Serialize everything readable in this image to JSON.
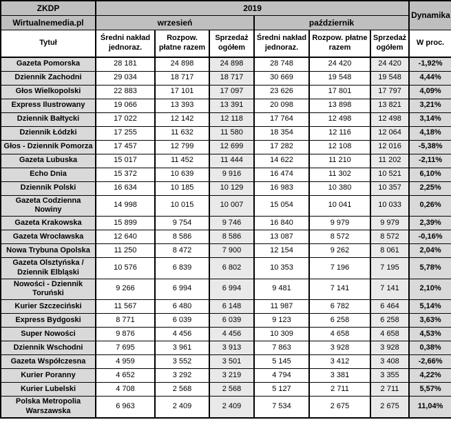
{
  "colors": {
    "header-gray": "#BFBFBF",
    "label-gray": "#D9D9D9",
    "shaded-col": "#E9E9E9",
    "pct-gray": "#D9D9D9",
    "border-black": "#000000",
    "bg-white": "#FFFFFF"
  },
  "chart_data": {
    "type": "table",
    "source_label": "ZKDP",
    "publisher_label": "Wirtualnemedia.pl",
    "year": "2019",
    "dynamics_label": "Dynamika",
    "title_label": "Tytuł",
    "percent_label": "W proc.",
    "months": [
      "wrzesień",
      "październik"
    ],
    "measure_headers": [
      "Średni nakład jednoraz.",
      "Rozpow. płatne razem",
      "Sprzedaż ogółem"
    ],
    "rows": [
      {
        "title": "Gazeta Pomorska",
        "values": [
          "28 181",
          "24 898",
          "24 898",
          "28 748",
          "24 420",
          "24 420"
        ],
        "dynamics": "-1,92%"
      },
      {
        "title": "Dziennik Zachodni",
        "values": [
          "29 034",
          "18 717",
          "18 717",
          "30 669",
          "19 548",
          "19 548"
        ],
        "dynamics": "4,44%"
      },
      {
        "title": "Głos Wielkopolski",
        "values": [
          "22 883",
          "17 101",
          "17 097",
          "23 626",
          "17 801",
          "17 797"
        ],
        "dynamics": "4,09%"
      },
      {
        "title": "Express Ilustrowany",
        "values": [
          "19 066",
          "13 393",
          "13 391",
          "20 098",
          "13 898",
          "13 821"
        ],
        "dynamics": "3,21%"
      },
      {
        "title": "Dziennik Bałtycki",
        "values": [
          "17 022",
          "12 142",
          "12 118",
          "17 764",
          "12 498",
          "12 498"
        ],
        "dynamics": "3,14%"
      },
      {
        "title": "Dziennik Łódzki",
        "values": [
          "17 255",
          "11 632",
          "11 580",
          "18 354",
          "12 116",
          "12 064"
        ],
        "dynamics": "4,18%"
      },
      {
        "title": "Głos - Dziennik Pomorza",
        "values": [
          "17 457",
          "12 799",
          "12 699",
          "17 282",
          "12 108",
          "12 016"
        ],
        "dynamics": "-5,38%"
      },
      {
        "title": "Gazeta Lubuska",
        "values": [
          "15 017",
          "11 452",
          "11 444",
          "14 622",
          "11 210",
          "11 202"
        ],
        "dynamics": "-2,11%"
      },
      {
        "title": "Echo Dnia",
        "values": [
          "15 372",
          "10 639",
          "9 916",
          "16 474",
          "11 302",
          "10 521"
        ],
        "dynamics": "6,10%"
      },
      {
        "title": "Dziennik Polski",
        "values": [
          "16 634",
          "10 185",
          "10 129",
          "16 983",
          "10 380",
          "10 357"
        ],
        "dynamics": "2,25%"
      },
      {
        "title": "Gazeta Codzienna Nowiny",
        "values": [
          "14 998",
          "10 015",
          "10 007",
          "15 054",
          "10 041",
          "10 033"
        ],
        "dynamics": "0,26%"
      },
      {
        "title": "Gazeta Krakowska",
        "values": [
          "15 899",
          "9 754",
          "9 746",
          "16 840",
          "9 979",
          "9 979"
        ],
        "dynamics": "2,39%"
      },
      {
        "title": "Gazeta Wrocławska",
        "values": [
          "12 640",
          "8 586",
          "8 586",
          "13 087",
          "8 572",
          "8 572"
        ],
        "dynamics": "-0,16%"
      },
      {
        "title": "Nowa Trybuna Opolska",
        "values": [
          "11 250",
          "8 472",
          "7 900",
          "12 154",
          "9 262",
          "8 061"
        ],
        "dynamics": "2,04%"
      },
      {
        "title": "Gazeta Olsztyńska / Dziennik Elbląski",
        "values": [
          "10 576",
          "6 839",
          "6 802",
          "10 353",
          "7 196",
          "7 195"
        ],
        "dynamics": "5,78%"
      },
      {
        "title": "Nowości - Dziennik Toruński",
        "values": [
          "9 266",
          "6 994",
          "6 994",
          "9 481",
          "7 141",
          "7 141"
        ],
        "dynamics": "2,10%"
      },
      {
        "title": "Kurier Szczeciński",
        "values": [
          "11 567",
          "6 480",
          "6 148",
          "11 987",
          "6 782",
          "6 464"
        ],
        "dynamics": "5,14%"
      },
      {
        "title": "Express Bydgoski",
        "values": [
          "8 771",
          "6 039",
          "6 039",
          "9 123",
          "6 258",
          "6 258"
        ],
        "dynamics": "3,63%"
      },
      {
        "title": "Super Nowości",
        "values": [
          "9 876",
          "4 456",
          "4 456",
          "10 309",
          "4 658",
          "4 658"
        ],
        "dynamics": "4,53%"
      },
      {
        "title": "Dziennik Wschodni",
        "values": [
          "7 695",
          "3 961",
          "3 913",
          "7 863",
          "3 928",
          "3 928"
        ],
        "dynamics": "0,38%"
      },
      {
        "title": "Gazeta Współczesna",
        "values": [
          "4 959",
          "3 552",
          "3 501",
          "5 145",
          "3 412",
          "3 408"
        ],
        "dynamics": "-2,66%"
      },
      {
        "title": "Kurier Poranny",
        "values": [
          "4 652",
          "3 292",
          "3 219",
          "4 794",
          "3 381",
          "3 355"
        ],
        "dynamics": "4,22%"
      },
      {
        "title": "Kurier Lubelski",
        "values": [
          "4 708",
          "2 568",
          "2 568",
          "5 127",
          "2 711",
          "2 711"
        ],
        "dynamics": "5,57%"
      },
      {
        "title": "Polska Metropolia Warszawska",
        "values": [
          "6 963",
          "2 409",
          "2 409",
          "7 534",
          "2 675",
          "2 675"
        ],
        "dynamics": "11,04%"
      }
    ]
  }
}
